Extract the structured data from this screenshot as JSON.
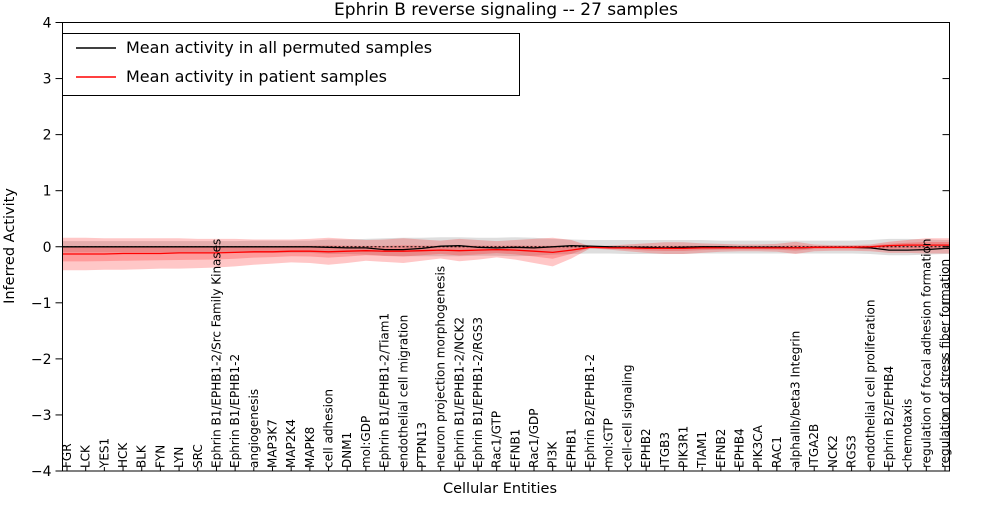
{
  "chart_data": {
    "type": "line",
    "title": "Ephrin B reverse signaling -- 27 samples",
    "xlabel": "Cellular Entities",
    "ylabel": "Inferred Activity",
    "ylim": [
      -4,
      4
    ],
    "grid": false,
    "zero_line": "dashed",
    "legend_position": "upper left",
    "yticks": [
      {
        "v": 4,
        "label": "4"
      },
      {
        "v": 3,
        "label": "3"
      },
      {
        "v": 2,
        "label": "2"
      },
      {
        "v": 1,
        "label": "1"
      },
      {
        "v": 0,
        "label": "0"
      },
      {
        "v": -1,
        "label": "−1"
      },
      {
        "v": -2,
        "label": "−2"
      },
      {
        "v": -3,
        "label": "−3"
      },
      {
        "v": -4,
        "label": "−4"
      }
    ],
    "entities": [
      "FGR",
      "LCK",
      "YES1",
      "HCK",
      "BLK",
      "FYN",
      "LYN",
      "SRC",
      "Ephrin B1/EPHB1-2/Src Family Kinases",
      "Ephrin B1/EPHB1-2",
      "angiogenesis",
      "MAP3K7",
      "MAP2K4",
      "MAPK8",
      "cell adhesion",
      "DNM1",
      "mol:GDP",
      "Ephrin B1/EPHB1-2/Tiam1",
      "endothelial cell migration",
      "PTPN13",
      "neuron projection morphogenesis",
      "Ephrin B1/EPHB1-2/NCK2",
      "Ephrin B1/EPHB1-2/RGS3",
      "Rac1/GTP",
      "EFNB1",
      "Rac1/GDP",
      "PI3K",
      "EPHB1",
      "Ephrin B2/EPHB1-2",
      "mol:GTP",
      "cell-cell signaling",
      "EPHB2",
      "ITGB3",
      "PIK3R1",
      "TIAM1",
      "EFNB2",
      "EPHB4",
      "PIK3CA",
      "RAC1",
      "alphaIIb/beta3 Integrin",
      "ITGA2B",
      "NCK2",
      "RGS3",
      "endothelial cell proliferation",
      "Ephrin B2/EPHB4",
      "chemotaxis",
      "regulation of focal adhesion formation",
      "regulation of stress fiber formation"
    ],
    "series": [
      {
        "name": "Mean activity in all permuted samples",
        "color": "#000000",
        "band_color": "rgba(0,0,0,0.13)",
        "values": [
          0,
          0,
          0,
          0,
          0,
          0,
          0,
          0,
          0,
          0,
          0,
          0,
          0,
          0,
          -0.01,
          -0.02,
          -0.02,
          -0.05,
          -0.05,
          -0.03,
          0.01,
          0.02,
          -0.01,
          -0.02,
          -0.01,
          -0.02,
          0,
          0.02,
          0.01,
          0,
          -0.01,
          -0.01,
          -0.02,
          -0.01,
          0,
          0,
          -0.01,
          -0.01,
          -0.01,
          -0.02,
          -0.01,
          -0.01,
          -0.01,
          -0.02,
          -0.06,
          -0.06,
          -0.05,
          -0.03
        ],
        "band_upper": [
          0.1,
          0.1,
          0.1,
          0.1,
          0.1,
          0.1,
          0.1,
          0.1,
          0.1,
          0.1,
          0.11,
          0.11,
          0.11,
          0.11,
          0.13,
          0.13,
          0.14,
          0.15,
          0.16,
          0.16,
          0.17,
          0.17,
          0.16,
          0.16,
          0.17,
          0.16,
          0.14,
          0.13,
          0.12,
          0.12,
          0.12,
          0.12,
          0.12,
          0.12,
          0.12,
          0.11,
          0.11,
          0.11,
          0.11,
          0.11,
          0.11,
          0.11,
          0.11,
          0.12,
          0.14,
          0.14,
          0.13,
          0.12
        ],
        "band_lower": [
          -0.1,
          -0.1,
          -0.1,
          -0.1,
          -0.1,
          -0.1,
          -0.1,
          -0.1,
          -0.1,
          -0.1,
          -0.11,
          -0.11,
          -0.11,
          -0.11,
          -0.13,
          -0.13,
          -0.14,
          -0.16,
          -0.17,
          -0.17,
          -0.17,
          -0.17,
          -0.16,
          -0.16,
          -0.17,
          -0.16,
          -0.14,
          -0.13,
          -0.12,
          -0.12,
          -0.13,
          -0.13,
          -0.13,
          -0.13,
          -0.12,
          -0.12,
          -0.12,
          -0.12,
          -0.12,
          -0.12,
          -0.12,
          -0.12,
          -0.12,
          -0.13,
          -0.15,
          -0.15,
          -0.14,
          -0.13
        ]
      },
      {
        "name": "Mean activity in patient samples",
        "color": "#ff0000",
        "band_color": "rgba(255,0,0,0.22)",
        "values": [
          -0.13,
          -0.13,
          -0.13,
          -0.12,
          -0.12,
          -0.12,
          -0.11,
          -0.11,
          -0.11,
          -0.1,
          -0.09,
          -0.09,
          -0.08,
          -0.08,
          -0.09,
          -0.08,
          -0.07,
          -0.08,
          -0.08,
          -0.07,
          -0.06,
          -0.07,
          -0.06,
          -0.05,
          -0.06,
          -0.08,
          -0.1,
          -0.06,
          -0.01,
          -0.02,
          -0.02,
          -0.03,
          -0.03,
          -0.03,
          -0.02,
          -0.02,
          -0.02,
          -0.02,
          -0.02,
          -0.02,
          -0.01,
          -0.01,
          -0.01,
          0,
          0.02,
          0.03,
          0.03,
          0.03
        ],
        "band_upper": [
          0.16,
          0.16,
          0.15,
          0.15,
          0.15,
          0.15,
          0.15,
          0.14,
          0.14,
          0.14,
          0.13,
          0.13,
          0.13,
          0.14,
          0.16,
          0.14,
          0.12,
          0.13,
          0.15,
          0.13,
          0.11,
          0.14,
          0.12,
          0.1,
          0.12,
          0.14,
          0.16,
          0.12,
          0.01,
          0.02,
          0.04,
          0.06,
          0.08,
          0.08,
          0.06,
          0.05,
          0.04,
          0.04,
          0.05,
          0.09,
          0.04,
          0.03,
          0.03,
          0.04,
          0.09,
          0.12,
          0.15,
          0.15
        ],
        "band_lower": [
          -0.42,
          -0.42,
          -0.41,
          -0.41,
          -0.4,
          -0.39,
          -0.39,
          -0.38,
          -0.37,
          -0.35,
          -0.32,
          -0.3,
          -0.28,
          -0.29,
          -0.32,
          -0.29,
          -0.25,
          -0.27,
          -0.29,
          -0.25,
          -0.21,
          -0.26,
          -0.23,
          -0.19,
          -0.23,
          -0.29,
          -0.35,
          -0.21,
          -0.03,
          -0.05,
          -0.08,
          -0.11,
          -0.13,
          -0.13,
          -0.11,
          -0.09,
          -0.08,
          -0.08,
          -0.09,
          -0.13,
          -0.08,
          -0.07,
          -0.07,
          -0.08,
          -0.11,
          -0.11,
          -0.12,
          -0.12
        ]
      }
    ]
  }
}
